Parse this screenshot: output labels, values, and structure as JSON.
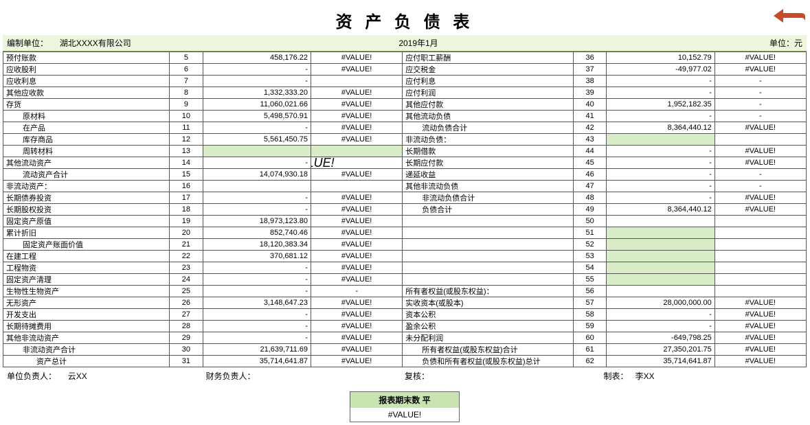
{
  "title": "资 产 负 债 表",
  "header": {
    "org_label": "编制单位：",
    "org_value": "湖北XXXX有限公司",
    "period": "2019年1月",
    "unit": "单位：元"
  },
  "arrow_color": "#c94b2a",
  "highlight_color": "#d7ecc7",
  "header_bg": "#eef6de",
  "left": [
    {
      "label": "预付账款",
      "no": "5",
      "v1": "458,176.22",
      "v2": "#VALUE!"
    },
    {
      "label": "应收股利",
      "no": "6",
      "v1": "-",
      "v2": "#VALUE!"
    },
    {
      "label": "应收利息",
      "no": "7",
      "v1": "-",
      "v2": ""
    },
    {
      "label": "其他应收款",
      "no": "8",
      "v1": "1,332,333.20",
      "v2": "#VALUE!"
    },
    {
      "label": "存货",
      "no": "9",
      "v1": "11,060,021.66",
      "v2": "#VALUE!"
    },
    {
      "label": "原材料",
      "indent": 1,
      "no": "10",
      "v1": "5,498,570.91",
      "v2": "#VALUE!"
    },
    {
      "label": "在产品",
      "indent": 1,
      "no": "11",
      "v1": "-",
      "v2": "#VALUE!"
    },
    {
      "label": "库存商品",
      "indent": 1,
      "no": "12",
      "v1": "5,561,450.75",
      "v2": "#VALUE!"
    },
    {
      "label": "周转材料",
      "indent": 1,
      "no": "13",
      "v1": "",
      "v2": "",
      "hl1": true,
      "hl2": true
    },
    {
      "label": "其他流动资产",
      "no": "14",
      "v1": "-",
      "v2": "",
      "big": "#VALUE!"
    },
    {
      "label": "流动资产合计",
      "indent": 1,
      "no": "15",
      "v1": "14,074,930.18",
      "v2": "#VALUE!"
    },
    {
      "label": "非流动资产：",
      "no": "16",
      "v1": "",
      "v2": ""
    },
    {
      "label": "长期债券投资",
      "no": "17",
      "v1": "-",
      "v2": "#VALUE!"
    },
    {
      "label": "长期股权投资",
      "no": "18",
      "v1": "-",
      "v2": "#VALUE!"
    },
    {
      "label": "固定资产原值",
      "no": "19",
      "v1": "18,973,123.80",
      "v2": "#VALUE!"
    },
    {
      "label": "累计折旧",
      "no": "20",
      "v1": "852,740.46",
      "v2": "#VALUE!"
    },
    {
      "label": "固定资产账面价值",
      "indent": 1,
      "no": "21",
      "v1": "18,120,383.34",
      "v2": "#VALUE!"
    },
    {
      "label": "在建工程",
      "no": "22",
      "v1": "370,681.12",
      "v2": "#VALUE!"
    },
    {
      "label": "工程物资",
      "no": "23",
      "v1": "-",
      "v2": "#VALUE!"
    },
    {
      "label": "固定资产清理",
      "no": "24",
      "v1": "-",
      "v2": "#VALUE!"
    },
    {
      "label": "生物性生物资产",
      "no": "25",
      "v1": "-",
      "v2": "-"
    },
    {
      "label": "无形资产",
      "no": "26",
      "v1": "3,148,647.23",
      "v2": "#VALUE!"
    },
    {
      "label": "开发支出",
      "no": "27",
      "v1": "-",
      "v2": "#VALUE!"
    },
    {
      "label": "长期待摊费用",
      "no": "28",
      "v1": "-",
      "v2": "#VALUE!"
    },
    {
      "label": "其他非流动资产",
      "no": "29",
      "v1": "-",
      "v2": "#VALUE!"
    },
    {
      "label": "非流动资产合计",
      "indent": 1,
      "no": "30",
      "v1": "21,639,711.69",
      "v2": "#VALUE!"
    },
    {
      "label": "资产总计",
      "indent": 2,
      "no": "31",
      "v1": "35,714,641.87",
      "v2": "#VALUE!"
    }
  ],
  "right": [
    {
      "label": "应付职工薪酬",
      "no": "36",
      "v1": "10,152.79",
      "v2": "#VALUE!"
    },
    {
      "label": "应交税金",
      "no": "37",
      "v1": "-49,977.02",
      "v2": "#VALUE!"
    },
    {
      "label": "应付利息",
      "no": "38",
      "v1": "-",
      "v2": "-"
    },
    {
      "label": "应付利润",
      "no": "39",
      "v1": "-",
      "v2": "-"
    },
    {
      "label": "其他应付款",
      "no": "40",
      "v1": "1,952,182.35",
      "v2": "-"
    },
    {
      "label": "其他流动负债",
      "no": "41",
      "v1": "-",
      "v2": "-"
    },
    {
      "label": "流动负债合计",
      "indent": 1,
      "no": "42",
      "v1": "8,364,440.12",
      "v2": "#VALUE!"
    },
    {
      "label": "非流动负债：",
      "no": "43",
      "v1": "",
      "v2": "",
      "hl1": true
    },
    {
      "label": "长期借款",
      "no": "44",
      "v1": "-",
      "v2": "#VALUE!"
    },
    {
      "label": "长期应付款",
      "no": "45",
      "v1": "-",
      "v2": "#VALUE!"
    },
    {
      "label": "递延收益",
      "no": "46",
      "v1": "-",
      "v2": "-"
    },
    {
      "label": "其他非流动负债",
      "no": "47",
      "v1": "-",
      "v2": "-"
    },
    {
      "label": "非流动负债合计",
      "indent": 1,
      "no": "48",
      "v1": "-",
      "v2": "#VALUE!"
    },
    {
      "label": "负债合计",
      "indent": 1,
      "no": "49",
      "v1": "8,364,440.12",
      "v2": "#VALUE!"
    },
    {
      "label": "",
      "no": "50",
      "v1": "",
      "v2": ""
    },
    {
      "label": "",
      "no": "51",
      "v1": "",
      "v2": "",
      "hl1": true
    },
    {
      "label": "",
      "no": "52",
      "v1": "",
      "v2": "",
      "hl1": true
    },
    {
      "label": "",
      "no": "53",
      "v1": "",
      "v2": "",
      "hl1": true
    },
    {
      "label": "",
      "no": "54",
      "v1": "",
      "v2": "",
      "hl1": true
    },
    {
      "label": "",
      "no": "55",
      "v1": "",
      "v2": "",
      "hl1": true
    },
    {
      "label": "所有者权益(或股东权益)：",
      "no": "56",
      "v1": "",
      "v2": ""
    },
    {
      "label": "实收资本(或股本)",
      "no": "57",
      "v1": "28,000,000.00",
      "v2": "#VALUE!"
    },
    {
      "label": "资本公积",
      "no": "58",
      "v1": "-",
      "v2": "#VALUE!"
    },
    {
      "label": "盈余公积",
      "no": "59",
      "v1": "-",
      "v2": "#VALUE!"
    },
    {
      "label": "未分配利润",
      "no": "60",
      "v1": "-649,798.25",
      "v2": "#VALUE!"
    },
    {
      "label": "所有者权益(或股东权益)合计",
      "indent": 1,
      "no": "61",
      "v1": "27,350,201.75",
      "v2": "#VALUE!"
    },
    {
      "label": "负债和所有者权益(或股东权益)总计",
      "indent": 1,
      "no": "62",
      "v1": "35,714,641.87",
      "v2": "#VALUE!"
    }
  ],
  "footer": {
    "p1_label": "单位负责人：",
    "p1_value": "云XX",
    "p2_label": "财务负责人：",
    "p3_label": "复核：",
    "p4_label": "制表：",
    "p4_value": "李XX"
  },
  "summary": {
    "title": "报表期末数 平",
    "value": "#VALUE!"
  }
}
